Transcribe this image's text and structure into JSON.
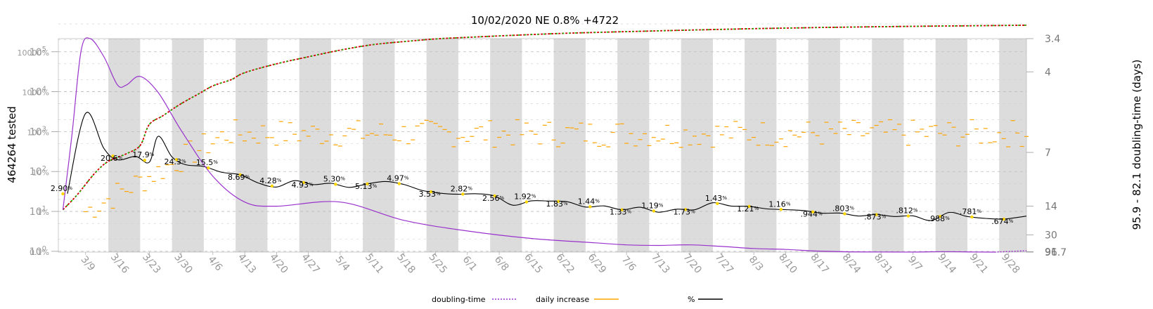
{
  "chart_data": {
    "type": "line",
    "title": "10/02/2020 NE 0.8% +4722",
    "ylabel_left": "464264 tested",
    "ylabel_right": "95.9 - 82.1 doubling-time (days)",
    "yaxis_left": {
      "scale": "log",
      "ticks": [
        {
          "base": "10",
          "exp": "0"
        },
        {
          "base": "10",
          "exp": "1"
        },
        {
          "base": "10",
          "exp": "2"
        },
        {
          "base": "10",
          "exp": "3"
        },
        {
          "base": "10",
          "exp": "4"
        },
        {
          "base": "10",
          "exp": "5"
        }
      ]
    },
    "percent_axis": {
      "ticks": [
        "0.1%",
        "1%",
        "10%",
        "100%",
        "1000%",
        "10000%"
      ]
    },
    "yaxis_right": {
      "scale": "reciprocal",
      "ticks": [
        "3.4",
        "4",
        "7",
        "14",
        "30",
        "91",
        "96.7"
      ]
    },
    "x_tick_labels": [
      "3/9",
      "3/16",
      "3/23",
      "3/30",
      "4/6",
      "4/13",
      "4/20",
      "4/27",
      "5/4",
      "5/11",
      "5/18",
      "5/25",
      "6/1",
      "6/8",
      "6/15",
      "6/22",
      "6/29",
      "7/6",
      "7/13",
      "7/20",
      "7/27",
      "8/3",
      "8/10",
      "8/17",
      "8/24",
      "8/31",
      "9/7",
      "9/14",
      "9/21",
      "9/28"
    ],
    "x_range": [
      "3/3",
      "10/2"
    ],
    "grid": true,
    "week_shading": true,
    "legend": {
      "placement": "bottom",
      "entries": [
        {
          "label": "doubling-time",
          "color": "#9932cc",
          "style": "dotted"
        },
        {
          "label": "daily increase",
          "color": "#ffa500",
          "style": "solid"
        },
        {
          "label": "%",
          "color": "#000000",
          "style": "solid"
        }
      ]
    },
    "series": [
      {
        "name": "tested",
        "color": "#cc0000",
        "x": [
          "3/4",
          "3/7",
          "3/11",
          "3/14",
          "3/18",
          "3/21",
          "3/23",
          "3/26",
          "3/30",
          "4/3",
          "4/6",
          "4/10",
          "4/13",
          "4/20",
          "4/27",
          "5/4",
          "5/11",
          "5/18",
          "5/25",
          "6/1",
          "6/8",
          "6/15",
          "6/22",
          "6/29",
          "7/6",
          "7/13",
          "7/20",
          "7/27",
          "8/3",
          "8/10",
          "8/17",
          "8/24",
          "8/31",
          "9/7",
          "9/14",
          "9/21",
          "9/28",
          "10/2"
        ],
        "values": [
          11,
          25,
          90,
          180,
          280,
          450,
          1500,
          2500,
          5000,
          9000,
          14000,
          20000,
          30000,
          50000,
          75000,
          110000,
          150000,
          180000,
          210000,
          230000,
          250000,
          270000,
          290000,
          305000,
          320000,
          335000,
          350000,
          365000,
          380000,
          392000,
          405000,
          415000,
          425000,
          435000,
          443000,
          450000,
          458000,
          464264
        ]
      },
      {
        "name": "%",
        "color": "#000000",
        "x": [
          "3/5",
          "3/9",
          "3/13",
          "3/16",
          "3/20",
          "3/23",
          "3/25",
          "3/28",
          "3/31",
          "4/4",
          "4/8",
          "4/12",
          "4/16",
          "4/20",
          "4/24",
          "4/28",
          "5/2",
          "5/6",
          "5/10",
          "5/14",
          "5/18",
          "5/22",
          "5/26",
          "5/30",
          "6/3",
          "6/7",
          "6/11",
          "6/15",
          "6/19",
          "6/23",
          "6/27",
          "7/1",
          "7/5",
          "7/9",
          "7/13",
          "7/17",
          "7/21",
          "7/25",
          "7/29",
          "8/2",
          "8/6",
          "8/10",
          "8/14",
          "8/18",
          "8/22",
          "8/26",
          "8/30",
          "9/3",
          "9/7",
          "9/11",
          "9/15",
          "9/19",
          "9/23",
          "9/27",
          "10/2"
        ],
        "values": [
          2.9,
          300,
          40,
          20.6,
          25,
          17.9,
          80,
          24.3,
          15.5,
          14,
          10,
          8.69,
          5.4,
          4.28,
          6.2,
          4.93,
          5.3,
          4.2,
          5.13,
          5.9,
          4.97,
          3.53,
          3.0,
          2.82,
          2.9,
          2.56,
          1.5,
          1.92,
          1.9,
          1.83,
          1.35,
          1.44,
          1.15,
          1.33,
          1.0,
          1.19,
          1.15,
          1.73,
          1.43,
          1.4,
          1.21,
          1.16,
          1.1,
          0.944,
          0.95,
          0.803,
          0.873,
          0.78,
          0.812,
          0.62,
          0.988,
          0.781,
          0.7,
          0.674,
          0.8
        ]
      },
      {
        "name": "doubling-time",
        "color": "#9932cc",
        "x": [
          "3/4",
          "3/6",
          "3/8",
          "3/10",
          "3/13",
          "3/16",
          "3/18",
          "3/21",
          "3/25",
          "3/30",
          "4/6",
          "4/13",
          "4/20",
          "5/4",
          "5/18",
          "6/1",
          "6/15",
          "6/29",
          "7/6",
          "7/13",
          "7/20",
          "7/27",
          "8/3",
          "8/10",
          "8/17",
          "8/24",
          "8/31",
          "9/7",
          "9/14",
          "9/21",
          "9/25",
          "10/2"
        ],
        "values": [
          15,
          6,
          3.6,
          3.4,
          3.7,
          4.3,
          4.3,
          4.1,
          4.5,
          5.8,
          9,
          13,
          14,
          13,
          19,
          26,
          35,
          44,
          50,
          52,
          50,
          56,
          66,
          72,
          85,
          93,
          95,
          95.9,
          91,
          95,
          96.7,
          82.1
        ]
      }
    ],
    "daily_increase_note": "orange dashes, scattered around 10^3",
    "point_labels": [
      {
        "x": "3/4",
        "label": "2.90",
        "suffix": "%"
      },
      {
        "x": "3/15",
        "label": "20.6",
        "suffix": "%"
      },
      {
        "x": "3/22",
        "label": "17.9",
        "suffix": "%"
      },
      {
        "x": "3/29",
        "label": "24.3",
        "suffix": "%"
      },
      {
        "x": "4/5",
        "label": "15.5",
        "suffix": "%"
      },
      {
        "x": "4/12",
        "label": "8.69",
        "suffix": "%"
      },
      {
        "x": "4/19",
        "label": "4.28",
        "suffix": "%"
      },
      {
        "x": "4/26",
        "label": "4.93",
        "suffix": "%"
      },
      {
        "x": "5/3",
        "label": "5.30",
        "suffix": "%"
      },
      {
        "x": "5/10",
        "label": "5.13",
        "suffix": "%"
      },
      {
        "x": "5/17",
        "label": "4.97",
        "suffix": "%"
      },
      {
        "x": "5/24",
        "label": "3.53",
        "suffix": "%"
      },
      {
        "x": "5/31",
        "label": "2.82",
        "suffix": "%"
      },
      {
        "x": "6/7",
        "label": "2.56",
        "suffix": "%"
      },
      {
        "x": "6/14",
        "label": "1.92",
        "suffix": "%"
      },
      {
        "x": "6/21",
        "label": "1.83",
        "suffix": "%"
      },
      {
        "x": "6/28",
        "label": "1.44",
        "suffix": "%"
      },
      {
        "x": "7/5",
        "label": "1.33",
        "suffix": "%"
      },
      {
        "x": "7/12",
        "label": "1.19",
        "suffix": "%"
      },
      {
        "x": "7/19",
        "label": "1.73",
        "suffix": "%"
      },
      {
        "x": "7/26",
        "label": "1.43",
        "suffix": "%"
      },
      {
        "x": "8/2",
        "label": "1.21",
        "suffix": "%"
      },
      {
        "x": "8/9",
        "label": "1.16",
        "suffix": "%"
      },
      {
        "x": "8/16",
        "label": ".944",
        "suffix": "%"
      },
      {
        "x": "8/23",
        "label": ".803",
        "suffix": "%"
      },
      {
        "x": "8/30",
        "label": ".873",
        "suffix": "%"
      },
      {
        "x": "9/6",
        "label": ".812",
        "suffix": "%"
      },
      {
        "x": "9/13",
        "label": ".988",
        "suffix": "%"
      },
      {
        "x": "9/20",
        "label": ".781",
        "suffix": "%"
      },
      {
        "x": "9/27",
        "label": ".674",
        "suffix": "%"
      }
    ]
  },
  "colors": {
    "week_band": "#dcdcdc",
    "tested_up": "#cc0000",
    "tested_alt": "#00cc00",
    "pct_line": "#000000",
    "doubling": "#9932cc",
    "daily": "#ffa500",
    "label_dot": "#ffd700"
  }
}
